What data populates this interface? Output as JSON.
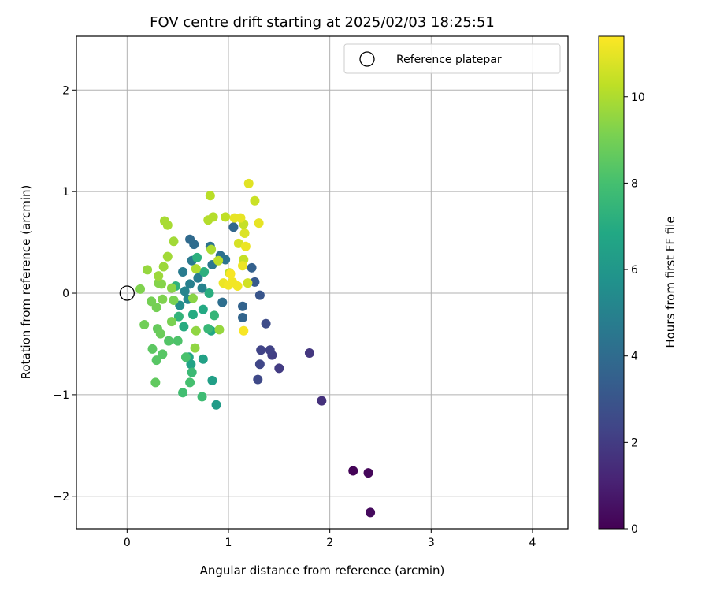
{
  "chart_data": {
    "type": "scatter",
    "title": "FOV centre drift starting at 2025/02/03 18:25:51",
    "xlabel": "Angular distance from reference (arcmin)",
    "ylabel": "Rotation from reference (arcmin)",
    "xlim": [
      -0.5,
      4.35
    ],
    "ylim": [
      -2.32,
      2.53
    ],
    "xticks": [
      0,
      1,
      2,
      3,
      4
    ],
    "yticks": [
      -2,
      -1,
      0,
      1,
      2
    ],
    "xtick_labels": [
      "0",
      "1",
      "2",
      "3",
      "4"
    ],
    "ytick_labels": [
      "−2",
      "−1",
      "0",
      "1",
      "2"
    ],
    "grid": true,
    "legend": {
      "label": "Reference platepar",
      "placement": "top-right",
      "marker": "open-circle"
    },
    "reference_point": {
      "x": 0,
      "y": 0
    },
    "colorbar": {
      "label": "Hours from first FF file",
      "colormap": "viridis",
      "range": [
        0,
        11.4
      ],
      "ticks": [
        0,
        2,
        4,
        6,
        8,
        10
      ],
      "tick_labels": [
        "0",
        "2",
        "4",
        "6",
        "8",
        "10"
      ]
    },
    "points": [
      {
        "x": 2.23,
        "y": -1.75,
        "c": 0.1
      },
      {
        "x": 2.38,
        "y": -1.77,
        "c": 0.2
      },
      {
        "x": 2.4,
        "y": -2.16,
        "c": 0.3
      },
      {
        "x": 1.92,
        "y": -1.06,
        "c": 1.6
      },
      {
        "x": 1.8,
        "y": -0.59,
        "c": 1.8
      },
      {
        "x": 1.5,
        "y": -0.74,
        "c": 2.0
      },
      {
        "x": 1.43,
        "y": -0.61,
        "c": 2.1
      },
      {
        "x": 1.41,
        "y": -0.56,
        "c": 2.2
      },
      {
        "x": 1.32,
        "y": -0.56,
        "c": 2.3
      },
      {
        "x": 1.31,
        "y": -0.7,
        "c": 2.4
      },
      {
        "x": 1.29,
        "y": -0.85,
        "c": 2.5
      },
      {
        "x": 1.37,
        "y": -0.3,
        "c": 2.6
      },
      {
        "x": 1.31,
        "y": -0.02,
        "c": 3.0
      },
      {
        "x": 1.26,
        "y": 0.11,
        "c": 3.2
      },
      {
        "x": 1.23,
        "y": 0.25,
        "c": 3.5
      },
      {
        "x": 1.14,
        "y": -0.13,
        "c": 3.6
      },
      {
        "x": 1.14,
        "y": -0.24,
        "c": 3.7
      },
      {
        "x": 1.05,
        "y": 0.65,
        "c": 3.8
      },
      {
        "x": 0.62,
        "y": 0.53,
        "c": 3.9
      },
      {
        "x": 0.66,
        "y": 0.48,
        "c": 4.0
      },
      {
        "x": 0.94,
        "y": -0.09,
        "c": 4.1
      },
      {
        "x": 0.92,
        "y": 0.37,
        "c": 4.2
      },
      {
        "x": 0.82,
        "y": 0.46,
        "c": 4.3
      },
      {
        "x": 0.97,
        "y": 0.33,
        "c": 4.4
      },
      {
        "x": 0.84,
        "y": 0.28,
        "c": 4.5
      },
      {
        "x": 0.64,
        "y": 0.32,
        "c": 4.6
      },
      {
        "x": 0.55,
        "y": 0.21,
        "c": 4.7
      },
      {
        "x": 0.7,
        "y": 0.15,
        "c": 4.8
      },
      {
        "x": 0.62,
        "y": 0.09,
        "c": 4.9
      },
      {
        "x": 0.74,
        "y": 0.05,
        "c": 5.0
      },
      {
        "x": 0.57,
        "y": 0.02,
        "c": 5.1
      },
      {
        "x": 0.6,
        "y": -0.06,
        "c": 5.3
      },
      {
        "x": 0.52,
        "y": -0.12,
        "c": 5.5
      },
      {
        "x": 0.88,
        "y": -1.1,
        "c": 6.2
      },
      {
        "x": 0.84,
        "y": -0.86,
        "c": 6.4
      },
      {
        "x": 0.75,
        "y": -0.65,
        "c": 6.5
      },
      {
        "x": 0.63,
        "y": -0.7,
        "c": 6.6
      },
      {
        "x": 0.61,
        "y": -0.63,
        "c": 6.7
      },
      {
        "x": 0.83,
        "y": -0.37,
        "c": 6.8
      },
      {
        "x": 0.75,
        "y": -0.16,
        "c": 6.9
      },
      {
        "x": 0.65,
        "y": -0.21,
        "c": 7.0
      },
      {
        "x": 0.56,
        "y": -0.33,
        "c": 7.0
      },
      {
        "x": 0.81,
        "y": 0.0,
        "c": 7.1
      },
      {
        "x": 0.69,
        "y": 0.35,
        "c": 7.2
      },
      {
        "x": 0.76,
        "y": 0.21,
        "c": 7.2
      },
      {
        "x": 0.48,
        "y": 0.07,
        "c": 7.3
      },
      {
        "x": 0.51,
        "y": -0.23,
        "c": 7.4
      },
      {
        "x": 0.86,
        "y": -0.22,
        "c": 7.5
      },
      {
        "x": 0.8,
        "y": -0.35,
        "c": 7.6
      },
      {
        "x": 0.64,
        "y": -0.78,
        "c": 7.7
      },
      {
        "x": 0.74,
        "y": -1.02,
        "c": 7.8
      },
      {
        "x": 0.55,
        "y": -0.98,
        "c": 7.9
      },
      {
        "x": 0.62,
        "y": -0.88,
        "c": 8.0
      },
      {
        "x": 0.58,
        "y": -0.63,
        "c": 8.1
      },
      {
        "x": 0.5,
        "y": -0.47,
        "c": 8.2
      },
      {
        "x": 0.41,
        "y": -0.47,
        "c": 8.3
      },
      {
        "x": 0.35,
        "y": -0.6,
        "c": 8.4
      },
      {
        "x": 0.29,
        "y": -0.66,
        "c": 8.4
      },
      {
        "x": 0.25,
        "y": -0.55,
        "c": 8.5
      },
      {
        "x": 0.28,
        "y": -0.88,
        "c": 8.6
      },
      {
        "x": 0.3,
        "y": -0.35,
        "c": 8.7
      },
      {
        "x": 0.33,
        "y": -0.4,
        "c": 8.8
      },
      {
        "x": 0.17,
        "y": -0.31,
        "c": 8.9
      },
      {
        "x": 0.29,
        "y": -0.14,
        "c": 9.0
      },
      {
        "x": 0.24,
        "y": -0.08,
        "c": 9.0
      },
      {
        "x": 0.44,
        "y": -0.28,
        "c": 9.1
      },
      {
        "x": 0.46,
        "y": -0.07,
        "c": 9.1
      },
      {
        "x": 0.35,
        "y": -0.06,
        "c": 9.2
      },
      {
        "x": 0.13,
        "y": 0.04,
        "c": 9.2
      },
      {
        "x": 0.31,
        "y": 0.1,
        "c": 9.3
      },
      {
        "x": 0.34,
        "y": 0.09,
        "c": 9.3
      },
      {
        "x": 0.44,
        "y": 0.05,
        "c": 9.4
      },
      {
        "x": 0.65,
        "y": -0.05,
        "c": 9.4
      },
      {
        "x": 0.68,
        "y": -0.37,
        "c": 9.5
      },
      {
        "x": 0.67,
        "y": -0.54,
        "c": 9.5
      },
      {
        "x": 0.91,
        "y": -0.36,
        "c": 9.6
      },
      {
        "x": 0.2,
        "y": 0.23,
        "c": 9.6
      },
      {
        "x": 0.31,
        "y": 0.17,
        "c": 9.7
      },
      {
        "x": 0.36,
        "y": 0.26,
        "c": 9.7
      },
      {
        "x": 0.4,
        "y": 0.36,
        "c": 9.8
      },
      {
        "x": 0.46,
        "y": 0.51,
        "c": 9.8
      },
      {
        "x": 0.4,
        "y": 0.67,
        "c": 9.9
      },
      {
        "x": 0.37,
        "y": 0.71,
        "c": 9.9
      },
      {
        "x": 0.68,
        "y": 0.24,
        "c": 10.0
      },
      {
        "x": 0.83,
        "y": 0.43,
        "c": 10.0
      },
      {
        "x": 0.8,
        "y": 0.72,
        "c": 10.1
      },
      {
        "x": 0.85,
        "y": 0.75,
        "c": 10.1
      },
      {
        "x": 0.82,
        "y": 0.96,
        "c": 10.2
      },
      {
        "x": 0.9,
        "y": 0.32,
        "c": 10.2
      },
      {
        "x": 0.97,
        "y": 0.75,
        "c": 10.3
      },
      {
        "x": 1.01,
        "y": 0.2,
        "c": 10.3
      },
      {
        "x": 1.15,
        "y": 0.33,
        "c": 10.4
      },
      {
        "x": 1.15,
        "y": 0.68,
        "c": 10.4
      },
      {
        "x": 1.26,
        "y": 0.91,
        "c": 10.5
      },
      {
        "x": 1.19,
        "y": 0.1,
        "c": 10.6
      },
      {
        "x": 1.1,
        "y": 0.49,
        "c": 10.7
      },
      {
        "x": 1.16,
        "y": 0.59,
        "c": 10.8
      },
      {
        "x": 1.2,
        "y": 1.08,
        "c": 10.9
      },
      {
        "x": 1.06,
        "y": 0.74,
        "c": 11.0
      },
      {
        "x": 1.12,
        "y": 0.74,
        "c": 11.0
      },
      {
        "x": 1.3,
        "y": 0.69,
        "c": 11.0
      },
      {
        "x": 1.17,
        "y": 0.46,
        "c": 11.1
      },
      {
        "x": 1.14,
        "y": 0.27,
        "c": 11.1
      },
      {
        "x": 0.95,
        "y": 0.1,
        "c": 11.1
      },
      {
        "x": 1.0,
        "y": 0.08,
        "c": 11.2
      },
      {
        "x": 1.04,
        "y": 0.11,
        "c": 11.2
      },
      {
        "x": 1.09,
        "y": 0.07,
        "c": 11.2
      },
      {
        "x": 1.15,
        "y": -0.37,
        "c": 11.3
      },
      {
        "x": 1.02,
        "y": 0.19,
        "c": 11.3
      }
    ]
  }
}
